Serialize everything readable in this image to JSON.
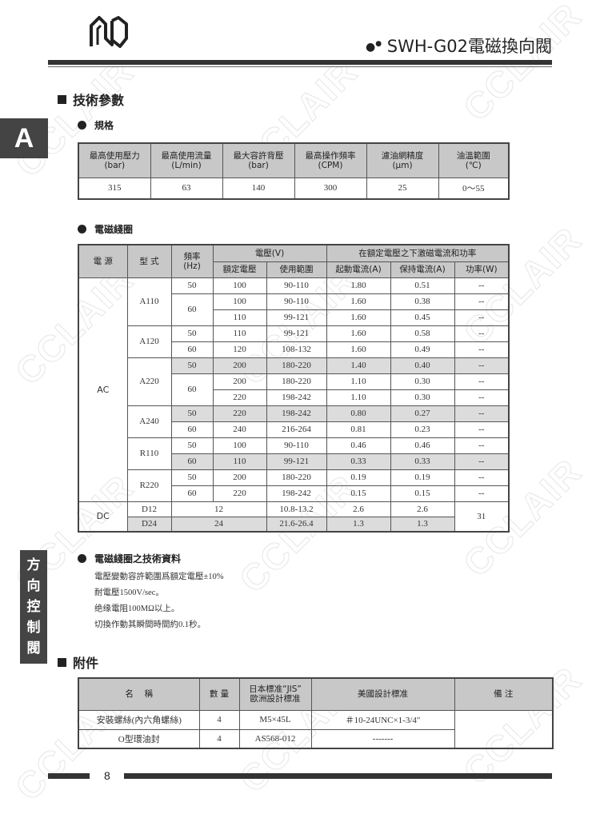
{
  "watermark": "CCLAIR",
  "header": {
    "title": "SWH-G02電磁換向閥",
    "logo_icon": "brand-logo-icon"
  },
  "side_tabs": {
    "letter": "A",
    "category": "方向控制閥"
  },
  "section_tech": "技術參數",
  "spec": {
    "heading": "規格",
    "headers": [
      [
        "最高使用壓力",
        "(bar)"
      ],
      [
        "最高使用流量",
        "(L/min)"
      ],
      [
        "最大容許背壓",
        "(bar)"
      ],
      [
        "最高操作頻率",
        "(CPM)"
      ],
      [
        "濾油網精度",
        "(μm)"
      ],
      [
        "油溫範圍",
        "(℃)"
      ]
    ],
    "values": [
      "315",
      "63",
      "140",
      "300",
      "25",
      "0～55"
    ]
  },
  "coil": {
    "heading": "電磁綫圈",
    "headers": {
      "source": "電 源",
      "model": "型 式",
      "freq": "頻率",
      "freq_unit": "(Hz)",
      "voltage": "電壓(V)",
      "rated": "額定電壓",
      "range": "使用範圍",
      "excite": "在額定電壓之下激磁電流和功率",
      "start": "起動電流(A)",
      "hold": "保持電流(A)",
      "power": "功率(W)"
    },
    "ac": {
      "source": "AC",
      "models": [
        {
          "model": "A110",
          "freqs": [
            {
              "freq": "50",
              "rows": [
                {
                  "rated": "100",
                  "range": "90-110",
                  "start": "1.80",
                  "hold": "0.51",
                  "power": "--"
                }
              ]
            },
            {
              "freq": "60",
              "rows": [
                {
                  "rated": "100",
                  "range": "90-110",
                  "start": "1.60",
                  "hold": "0.38",
                  "power": "--"
                },
                {
                  "rated": "110",
                  "range": "99-121",
                  "start": "1.60",
                  "hold": "0.45",
                  "power": "--"
                }
              ]
            }
          ]
        },
        {
          "model": "A120",
          "freqs": [
            {
              "freq": "50",
              "rows": [
                {
                  "rated": "110",
                  "range": "99-121",
                  "start": "1.60",
                  "hold": "0.58",
                  "power": "--"
                }
              ]
            },
            {
              "freq": "60",
              "rows": [
                {
                  "rated": "120",
                  "range": "108-132",
                  "start": "1.60",
                  "hold": "0.49",
                  "power": "--"
                }
              ]
            }
          ]
        },
        {
          "model": "A220",
          "freqs": [
            {
              "freq": "50",
              "rows": [
                {
                  "rated": "200",
                  "range": "180-220",
                  "start": "1.40",
                  "hold": "0.40",
                  "power": "--",
                  "shaded": true
                }
              ]
            },
            {
              "freq": "60",
              "rows": [
                {
                  "rated": "200",
                  "range": "180-220",
                  "start": "1.10",
                  "hold": "0.30",
                  "power": "--"
                },
                {
                  "rated": "220",
                  "range": "198-242",
                  "start": "1.10",
                  "hold": "0.30",
                  "power": "--"
                }
              ]
            }
          ]
        },
        {
          "model": "A240",
          "freqs": [
            {
              "freq": "50",
              "rows": [
                {
                  "rated": "220",
                  "range": "198-242",
                  "start": "0.80",
                  "hold": "0.27",
                  "power": "--",
                  "shaded": true
                }
              ]
            },
            {
              "freq": "60",
              "rows": [
                {
                  "rated": "240",
                  "range": "216-264",
                  "start": "0.81",
                  "hold": "0.23",
                  "power": "--"
                }
              ]
            }
          ]
        },
        {
          "model": "R110",
          "freqs": [
            {
              "freq": "50",
              "rows": [
                {
                  "rated": "100",
                  "range": "90-110",
                  "start": "0.46",
                  "hold": "0.46",
                  "power": "--"
                }
              ]
            },
            {
              "freq": "60",
              "rows": [
                {
                  "rated": "110",
                  "range": "99-121",
                  "start": "0.33",
                  "hold": "0.33",
                  "power": "--",
                  "shaded": true
                }
              ]
            }
          ]
        },
        {
          "model": "R220",
          "freqs": [
            {
              "freq": "50",
              "rows": [
                {
                  "rated": "200",
                  "range": "180-220",
                  "start": "0.19",
                  "hold": "0.19",
                  "power": "--"
                }
              ]
            },
            {
              "freq": "60",
              "rows": [
                {
                  "rated": "220",
                  "range": "198-242",
                  "start": "0.15",
                  "hold": "0.15",
                  "power": "--"
                }
              ]
            }
          ]
        }
      ]
    },
    "dc": {
      "source": "DC",
      "power": "31",
      "rows": [
        {
          "model": "D12",
          "rated": "12",
          "range": "10.8-13.2",
          "start": "2.6",
          "hold": "2.6"
        },
        {
          "model": "D24",
          "rated": "24",
          "range": "21.6-26.4",
          "start": "1.3",
          "hold": "1.3",
          "shaded": true
        }
      ]
    }
  },
  "coil_tech": {
    "heading": "電磁綫圈之技術資料",
    "lines": [
      "電壓變動容許範圍爲額定電壓±10%",
      "耐電壓1500V/sec。",
      "绝缘電阻100MΩ以上。",
      "切換作動其瞬間時間約0.1秒。"
    ]
  },
  "accessories": {
    "heading": "附件",
    "headers": {
      "name": "名　 稱",
      "qty": "數 量",
      "jis1": "日本標准“JIS”",
      "jis2": "歐洲設計標准",
      "us": "美國設計標准",
      "remark": "備 注"
    },
    "rows": [
      {
        "name": "安裝螺絲(內六角螺絲)",
        "qty": "4",
        "jis": "M5×45L",
        "us": "＃10-24UNC×1-3/4\""
      },
      {
        "name": "O型環油封",
        "qty": "4",
        "jis": "AS568-012",
        "us": "-------"
      }
    ]
  },
  "footer": {
    "page": "8"
  }
}
